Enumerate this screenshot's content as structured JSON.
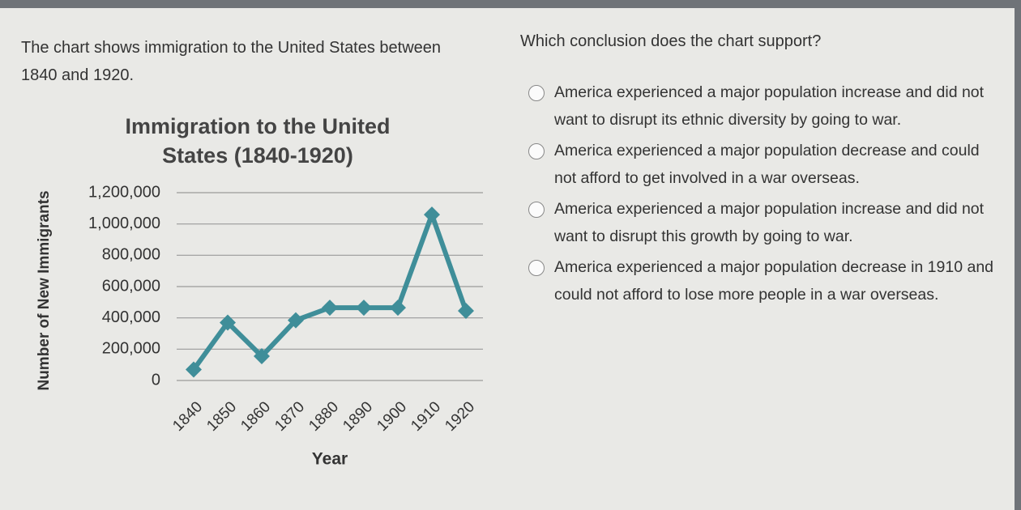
{
  "intro": "The chart shows immigration to the United States between 1840 and 1920.",
  "chart_data": {
    "type": "line",
    "title": "Immigration to the United States (1840-1920)",
    "x_label": "Year",
    "y_label": "Number of New Immigrants",
    "categories": [
      "1840",
      "1850",
      "1860",
      "1870",
      "1880",
      "1890",
      "1900",
      "1910",
      "1920"
    ],
    "values": [
      70000,
      370000,
      155000,
      385000,
      465000,
      465000,
      465000,
      1060000,
      445000
    ],
    "color": "#3f8e99",
    "ylim": [
      0,
      1200000
    ],
    "yticks": [
      0,
      {
        "value": 200000,
        "label": "200,000"
      },
      {
        "value": 400000,
        "label": "400,000"
      },
      {
        "value": 600000,
        "label": "600,000"
      },
      {
        "value": 800000,
        "label": "800,000"
      },
      {
        "value": 1000000,
        "label": "1,000,000"
      },
      {
        "value": 1200000,
        "label": "1,200,000"
      }
    ],
    "grid": true
  },
  "question": "Which conclusion does the chart support?",
  "options": [
    "America experienced a major population increase and did not want to disrupt its ethnic diversity by going to war.",
    "America experienced a major population decrease and could not afford to get involved in a war overseas.",
    "America experienced a major population increase and did not want to disrupt this growth by going to war.",
    "America experienced a major population decrease in 1910 and could not afford to lose more people in a war overseas."
  ]
}
